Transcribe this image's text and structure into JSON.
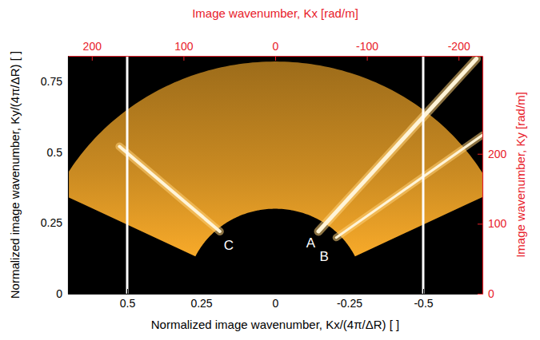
{
  "chart_data": {
    "type": "spectrum",
    "x_label": "Normalized image wavenumber, Kx/(4π/ΔR) [ ]",
    "y_label": "Normalized image wavenumber, Ky/(4π/ΔR) [ ]",
    "x2_label": "Image wavenumber, Kx [rad/m]",
    "y2_label": "Image wavenumber, Ky [rad/m]",
    "xlim": [
      0.7,
      -0.7
    ],
    "xticks": [
      0.5,
      0.25,
      0,
      -0.25,
      -0.5
    ],
    "ylim": [
      0,
      0.84
    ],
    "yticks": [
      0,
      0.25,
      0.5,
      0.75
    ],
    "x2lim": [
      226,
      -226
    ],
    "x2ticks": [
      200,
      100,
      0,
      -100,
      -200
    ],
    "y2lim": [
      0,
      340
    ],
    "y2ticks": [
      0,
      100,
      200
    ],
    "color": "#c98a22",
    "sector": {
      "inner_radius": 0.3,
      "outer_radius": 0.82,
      "angle_min": -64,
      "angle_max": 64
    },
    "vlines": [
      0.5,
      -0.5
    ],
    "streaks": [
      {
        "label": "A",
        "x0": -0.146,
        "y0": 0.22,
        "x1": -0.68,
        "y1": 0.83,
        "label_x": -0.12,
        "label_y": 0.18
      },
      {
        "label": "B",
        "x0": -0.206,
        "y0": 0.198,
        "x1": -0.7,
        "y1": 0.56,
        "label_x": -0.165,
        "label_y": 0.13
      },
      {
        "label": "C",
        "x0": 0.187,
        "y0": 0.22,
        "x1": 0.526,
        "y1": 0.52,
        "label_x": 0.157,
        "label_y": 0.17
      }
    ]
  }
}
